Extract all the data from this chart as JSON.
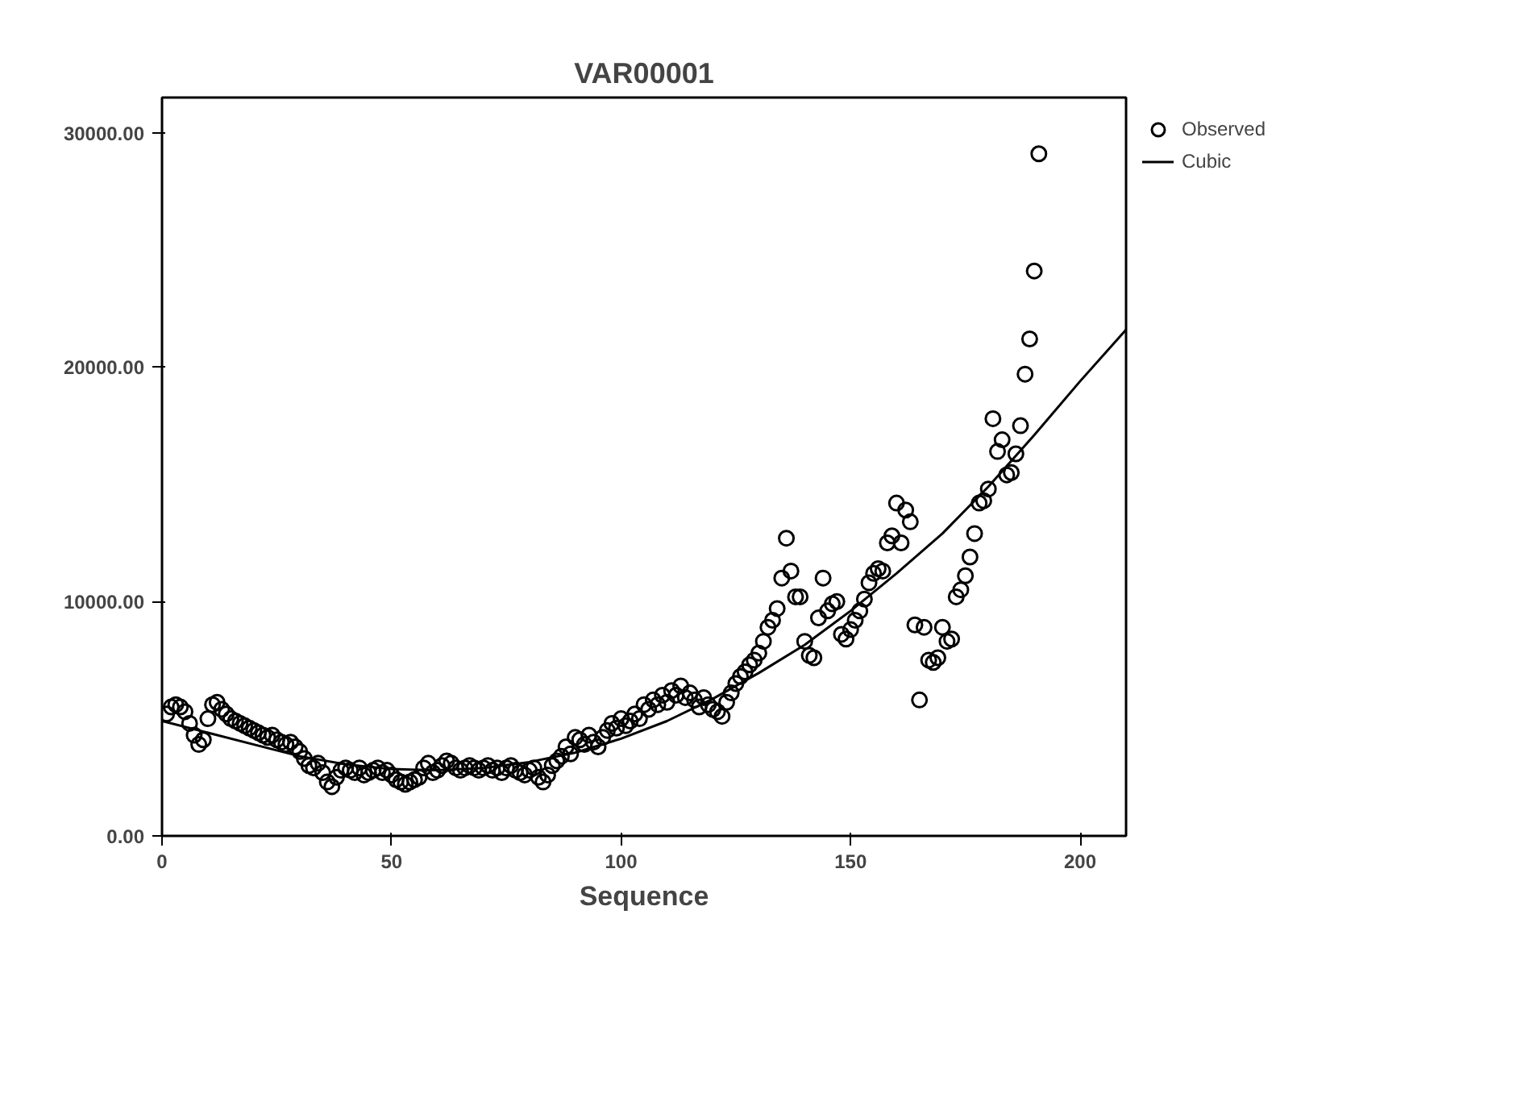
{
  "chart_data": {
    "type": "scatter",
    "title": "VAR00001",
    "xlabel": "Sequence",
    "xlim": [
      0,
      210
    ],
    "ylim": [
      0,
      31500
    ],
    "xticks": [
      0,
      50,
      100,
      150,
      200
    ],
    "yticks": [
      {
        "value": 0,
        "label": "0.00"
      },
      {
        "value": 10000,
        "label": "10000.00"
      },
      {
        "value": 20000,
        "label": "20000.00"
      },
      {
        "value": 30000,
        "label": "30000.00"
      }
    ],
    "grid": false,
    "legend": "top right",
    "marker": "circle",
    "series": [
      {
        "name": "Observed",
        "color": "#000000",
        "x": [
          1,
          2,
          3,
          4,
          5,
          6,
          7,
          8,
          9,
          10,
          11,
          12,
          13,
          14,
          15,
          16,
          17,
          18,
          19,
          20,
          21,
          22,
          23,
          24,
          25,
          26,
          27,
          28,
          29,
          30,
          31,
          32,
          33,
          34,
          35,
          36,
          37,
          38,
          39,
          40,
          41,
          42,
          43,
          44,
          45,
          46,
          47,
          48,
          49,
          50,
          51,
          52,
          53,
          54,
          55,
          56,
          57,
          58,
          59,
          60,
          61,
          62,
          63,
          64,
          65,
          66,
          67,
          68,
          69,
          70,
          71,
          72,
          73,
          74,
          75,
          76,
          77,
          78,
          79,
          80,
          81,
          82,
          83,
          84,
          85,
          86,
          87,
          88,
          89,
          90,
          91,
          92,
          93,
          94,
          95,
          96,
          97,
          98,
          99,
          100,
          101,
          102,
          103,
          104,
          105,
          106,
          107,
          108,
          109,
          110,
          111,
          112,
          113,
          114,
          115,
          116,
          117,
          118,
          119,
          120,
          121,
          122,
          123,
          124,
          125,
          126,
          127,
          128,
          129,
          130,
          131,
          132,
          133,
          134,
          135,
          136,
          137,
          138,
          139,
          140,
          141,
          142,
          143,
          144,
          145,
          146,
          147,
          148,
          149,
          150,
          151,
          152,
          153,
          154,
          155,
          156,
          157,
          158,
          159,
          160,
          161,
          162,
          163,
          164,
          165,
          166,
          167,
          168,
          169,
          170,
          171,
          172,
          173,
          174,
          175,
          176,
          177,
          178,
          179,
          180,
          181,
          182,
          183,
          184,
          185,
          186,
          187,
          188,
          189,
          190,
          191
        ],
        "values": [
          5200,
          5500,
          5600,
          5500,
          5300,
          4800,
          4300,
          3900,
          4100,
          5000,
          5600,
          5700,
          5400,
          5200,
          5000,
          4900,
          4800,
          4700,
          4600,
          4500,
          4400,
          4300,
          4200,
          4300,
          4100,
          4000,
          3900,
          4000,
          3800,
          3600,
          3300,
          3000,
          2900,
          3100,
          2700,
          2300,
          2100,
          2500,
          2800,
          2900,
          2800,
          2700,
          2900,
          2600,
          2700,
          2800,
          2900,
          2700,
          2800,
          2600,
          2400,
          2300,
          2200,
          2300,
          2400,
          2500,
          2900,
          3100,
          2700,
          2800,
          3000,
          3200,
          3100,
          2900,
          2800,
          2900,
          3000,
          2900,
          2800,
          2900,
          3000,
          2800,
          2900,
          2700,
          2900,
          3000,
          2800,
          2700,
          2600,
          2800,
          2900,
          2500,
          2300,
          2600,
          3000,
          3200,
          3400,
          3800,
          3500,
          4200,
          4100,
          3900,
          4300,
          4000,
          3800,
          4200,
          4500,
          4800,
          4600,
          5000,
          4700,
          4900,
          5200,
          5000,
          5600,
          5400,
          5800,
          5600,
          6000,
          5700,
          6200,
          6000,
          6400,
          5900,
          6100,
          5800,
          5500,
          5900,
          5600,
          5400,
          5300,
          5100,
          5700,
          6100,
          6500,
          6800,
          7000,
          7300,
          7500,
          7800,
          8300,
          8900,
          9200,
          9700,
          11000,
          12700,
          11300,
          10200,
          10200,
          8300,
          7700,
          7600,
          9300,
          11000,
          9600,
          9900,
          10000,
          8600,
          8400,
          8800,
          9200,
          9600,
          10100,
          10800,
          11200,
          11400,
          11300,
          12500,
          12800,
          14200,
          12500,
          13900,
          13400,
          9000,
          5800,
          8900,
          7500,
          7400,
          7600,
          8900,
          8300,
          8400,
          10200,
          10500,
          11100,
          11900,
          12900,
          14200,
          14300,
          14800,
          17800,
          16400,
          16900,
          15400,
          15500,
          16300,
          17500,
          19700,
          21200,
          24100,
          29100
        ]
      },
      {
        "name": "Cubic",
        "type": "line",
        "marker": "none",
        "color": "#000000",
        "x": [
          0,
          10,
          20,
          30,
          40,
          50,
          60,
          70,
          80,
          90,
          100,
          110,
          120,
          130,
          140,
          150,
          160,
          170,
          180,
          190,
          200,
          210
        ],
        "values": [
          4900,
          4400,
          3900,
          3400,
          3050,
          2850,
          2800,
          2900,
          3150,
          3550,
          4150,
          4900,
          5850,
          6950,
          8150,
          9600,
          11200,
          12900,
          14900,
          17100,
          19400,
          21600
        ]
      }
    ]
  }
}
